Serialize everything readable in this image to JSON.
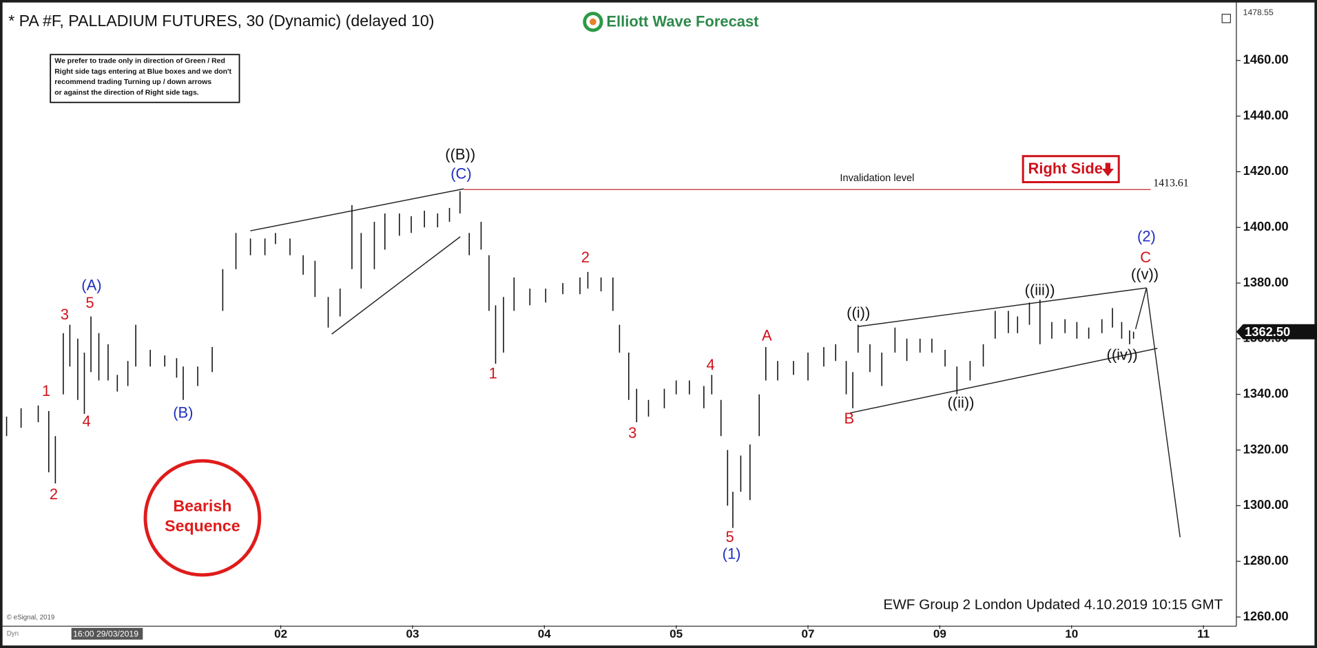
{
  "chart_data": {
    "type": "ohlc",
    "title": "* PA #F, PALLADIUM FUTURES, 30 (Dynamic) (delayed 10)",
    "brand": "Elliott Wave Forecast",
    "disclaimer": [
      "We prefer to trade only in direction of Green / Red",
      "Right side tags entering at Blue boxes and we don't",
      "recommend trading Turning up / down arrows",
      "or against the direction of Right side tags."
    ],
    "tag": "Right Side",
    "badge": [
      "Bearish",
      "Sequence"
    ],
    "footer": "EWF Group 2 London Updated 4.10.2019 10:15 GMT",
    "copyright": "© eSignal, 2019",
    "start_label": "16:00 29/03/2019",
    "mode_label": "Dyn",
    "color": "#111111",
    "x": [
      -1.08,
      -0.97,
      -0.84,
      -0.76,
      -0.71,
      -0.65,
      -0.6,
      -0.54,
      -0.49,
      -0.44,
      -0.38,
      -0.31,
      -0.24,
      -0.16,
      -0.1,
      0.01,
      0.12,
      0.21,
      0.26,
      0.37,
      0.48,
      0.56,
      0.66,
      0.77,
      0.88,
      0.96,
      1.07,
      1.17,
      1.26,
      1.36,
      1.45,
      1.54,
      1.61,
      1.71,
      1.79,
      1.9,
      1.99,
      2.09,
      2.19,
      2.28,
      2.36,
      2.43,
      2.52,
      2.58,
      2.63,
      2.69,
      2.77,
      2.89,
      3.01,
      3.14,
      3.27,
      3.33,
      3.43,
      3.52,
      3.57,
      3.64,
      3.7,
      3.79,
      3.91,
      4.0,
      4.1,
      4.21,
      4.27,
      4.34,
      4.39,
      4.43,
      4.49,
      4.56,
      4.63,
      4.68,
      4.77,
      4.89,
      5.0,
      5.12,
      5.21,
      5.29,
      5.34,
      5.38,
      5.47,
      5.56,
      5.66,
      5.75,
      5.85,
      5.94,
      6.04,
      6.13,
      6.23,
      6.33,
      6.42,
      6.52,
      6.59,
      6.68,
      6.76,
      6.85,
      6.95,
      7.04,
      7.13,
      7.23,
      7.31,
      7.38,
      7.44,
      7.47
    ],
    "high": [
      1332,
      1335,
      1336,
      1334,
      1325,
      1362,
      1365,
      1360,
      1355,
      1368,
      1362,
      1358,
      1347,
      1352,
      1365,
      1356,
      1354,
      1353,
      1350,
      1350,
      1357,
      1385,
      1398,
      1396,
      1396,
      1398,
      1396,
      1390,
      1388,
      1375,
      1378,
      1408,
      1398,
      1402,
      1405,
      1405,
      1404,
      1406,
      1405,
      1407,
      1413,
      1398,
      1402,
      1390,
      1372,
      1375,
      1382,
      1378,
      1378,
      1380,
      1382,
      1384,
      1382,
      1382,
      1365,
      1355,
      1342,
      1338,
      1342,
      1345,
      1345,
      1343,
      1347,
      1338,
      1320,
      1305,
      1318,
      1322,
      1340,
      1357,
      1352,
      1352,
      1355,
      1357,
      1358,
      1352,
      1348,
      1365,
      1358,
      1355,
      1364,
      1360,
      1360,
      1360,
      1356,
      1350,
      1352,
      1358,
      1370,
      1370,
      1368,
      1373,
      1374,
      1366,
      1367,
      1366,
      1364,
      1367,
      1371,
      1366,
      1363,
      1362.5
    ],
    "low": [
      1325,
      1328,
      1330,
      1312,
      1308,
      1340,
      1350,
      1338,
      1333,
      1348,
      1345,
      1345,
      1341,
      1343,
      1350,
      1350,
      1350,
      1346,
      1338,
      1343,
      1348,
      1370,
      1385,
      1390,
      1390,
      1394,
      1390,
      1383,
      1375,
      1364,
      1368,
      1385,
      1378,
      1385,
      1392,
      1397,
      1398,
      1400,
      1400,
      1402,
      1405,
      1390,
      1392,
      1370,
      1351,
      1355,
      1370,
      1372,
      1373,
      1376,
      1376,
      1378,
      1377,
      1370,
      1355,
      1338,
      1330,
      1332,
      1335,
      1340,
      1340,
      1335,
      1340,
      1325,
      1300,
      1292,
      1305,
      1302,
      1325,
      1345,
      1345,
      1347,
      1345,
      1350,
      1352,
      1340,
      1335,
      1355,
      1348,
      1343,
      1355,
      1352,
      1355,
      1355,
      1350,
      1340,
      1345,
      1350,
      1360,
      1362,
      1362,
      1365,
      1358,
      1360,
      1362,
      1360,
      1360,
      1362,
      1364,
      1360,
      1358,
      1360
    ],
    "xlim": [
      -1.13,
      8.25
    ],
    "xticks": [
      {
        "value": 1,
        "label": "02"
      },
      {
        "value": 2,
        "label": "03"
      },
      {
        "value": 3,
        "label": "04"
      },
      {
        "value": 4,
        "label": "05"
      },
      {
        "value": 5,
        "label": "07"
      },
      {
        "value": 6,
        "label": "09"
      },
      {
        "value": 7,
        "label": "10"
      },
      {
        "value": 8,
        "label": "11"
      }
    ],
    "ylim": [
      1257,
      1479.3
    ],
    "yticks": [
      {
        "value": 1260,
        "label": "1260.00"
      },
      {
        "value": 1280,
        "label": "1280.00"
      },
      {
        "value": 1300,
        "label": "1300.00"
      },
      {
        "value": 1320,
        "label": "1320.00"
      },
      {
        "value": 1340,
        "label": "1340.00"
      },
      {
        "value": 1360,
        "label": "1360.00"
      },
      {
        "value": 1380,
        "label": "1380.00"
      },
      {
        "value": 1400,
        "label": "1400.00"
      },
      {
        "value": 1420,
        "label": "1420.00"
      },
      {
        "value": 1440,
        "label": "1440.00"
      },
      {
        "value": 1460,
        "label": "1460.00"
      }
    ],
    "top_price": {
      "value": 1478.55,
      "label": "1478.55"
    },
    "last_price": {
      "value": 1362.5,
      "label": "1362.50"
    },
    "invalidation": {
      "text": "Invalidation level",
      "value": 1413.61,
      "color": "#c0282d"
    },
    "annotations": [
      {
        "text": "((B))",
        "color": "#111111"
      },
      {
        "text": "(C)",
        "color": "#1f2fbf"
      },
      {
        "text": "(A)",
        "color": "#1f2fbf"
      },
      {
        "text": "5",
        "color": "#d0121b"
      },
      {
        "text": "3",
        "color": "#d0121b"
      },
      {
        "text": "1",
        "color": "#d0121b"
      },
      {
        "text": "4",
        "color": "#d0121b"
      },
      {
        "text": "2",
        "color": "#d0121b"
      },
      {
        "text": "(B)",
        "color": "#1f2fbf"
      },
      {
        "text": "2",
        "color": "#d0121b"
      },
      {
        "text": "1",
        "color": "#d0121b"
      },
      {
        "text": "3",
        "color": "#d0121b"
      },
      {
        "text": "4",
        "color": "#d0121b"
      },
      {
        "text": "5",
        "color": "#d0121b"
      },
      {
        "text": "(1)",
        "color": "#1f2fbf"
      },
      {
        "text": "A",
        "color": "#d0121b"
      },
      {
        "text": "B",
        "color": "#d0121b"
      },
      {
        "text": "((i))",
        "color": "#111111"
      },
      {
        "text": "((ii))",
        "color": "#111111"
      },
      {
        "text": "((iii))",
        "color": "#111111"
      },
      {
        "text": "((iv))",
        "color": "#111111"
      },
      {
        "text": "((v))",
        "color": "#111111"
      },
      {
        "text": "C",
        "color": "#d0121b"
      },
      {
        "text": "(2)",
        "color": "#1f2fbf"
      }
    ]
  }
}
